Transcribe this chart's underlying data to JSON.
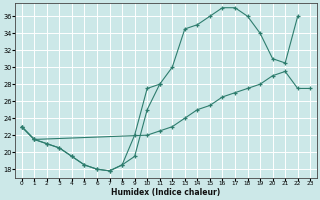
{
  "xlabel": "Humidex (Indice chaleur)",
  "bg_color": "#cce8e8",
  "grid_color": "#ffffff",
  "line_color": "#2e7d6e",
  "xlim": [
    -0.5,
    23.5
  ],
  "ylim": [
    17,
    37.5
  ],
  "xticks": [
    0,
    1,
    2,
    3,
    4,
    5,
    6,
    7,
    8,
    9,
    10,
    11,
    12,
    13,
    14,
    15,
    16,
    17,
    18,
    19,
    20,
    21,
    22,
    23
  ],
  "yticks": [
    18,
    20,
    22,
    24,
    26,
    28,
    30,
    32,
    34,
    36
  ],
  "line1_x": [
    0,
    1,
    2,
    3,
    4,
    5,
    6,
    7,
    8,
    9,
    10,
    11,
    12,
    13,
    14,
    15,
    16,
    17,
    18,
    19,
    20,
    21,
    22
  ],
  "line1_y": [
    23,
    21.5,
    21,
    20.5,
    19.5,
    18.5,
    18.0,
    17.8,
    18.5,
    19.5,
    25,
    28,
    30,
    34.5,
    35,
    36,
    37,
    37,
    36,
    34,
    31,
    30.5,
    36
  ],
  "line2_x": [
    0,
    1,
    2,
    3,
    4,
    5,
    6,
    7,
    8,
    9,
    10,
    11
  ],
  "line2_y": [
    23,
    21.5,
    21,
    20.5,
    19.5,
    18.5,
    18.0,
    17.8,
    18.5,
    22,
    27.5,
    28
  ],
  "line3_x": [
    0,
    1,
    10,
    11,
    12,
    13,
    14,
    15,
    16,
    17,
    18,
    19,
    20,
    21,
    22,
    23
  ],
  "line3_y": [
    23,
    21.5,
    22,
    22.5,
    23,
    24,
    25,
    25.5,
    26.5,
    27,
    27.5,
    28,
    29,
    29.5,
    27.5,
    27.5
  ]
}
